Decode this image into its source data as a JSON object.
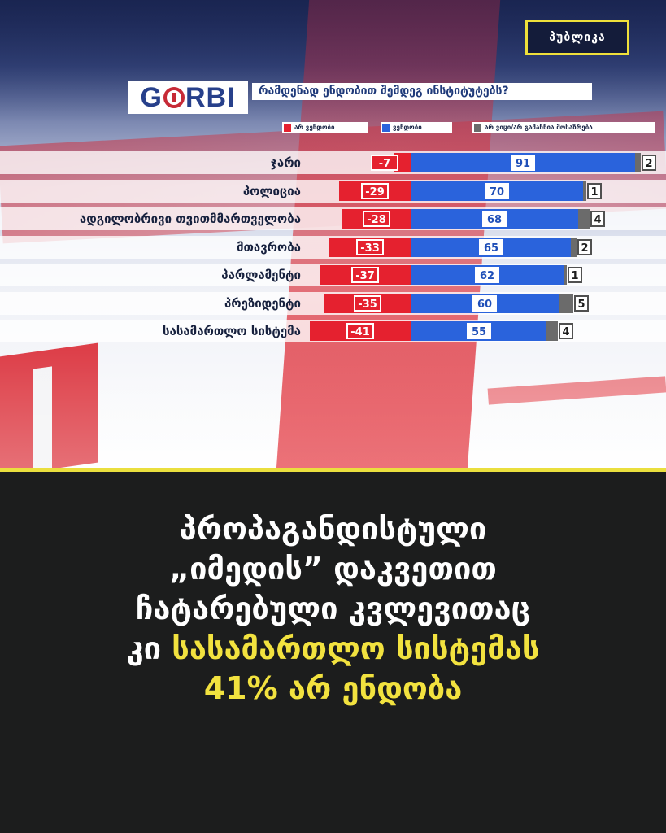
{
  "brand": "პუბლიკა",
  "logo": {
    "prefix": "G",
    "suffix": "RBI"
  },
  "question": "რამდენად ენდობით შემდეგ ინსტიტუტებს?",
  "colors": {
    "negative": "#e5212f",
    "positive": "#2a63dc",
    "neutral": "#6b6b6b",
    "highlight": "#f2e23f"
  },
  "chart_data": {
    "type": "bar",
    "title": "რამდენად ენდობით შემდეგ ინსტიტუტებს?",
    "categories": [
      "ჯარი",
      "პოლიცია",
      "ადგილობრივი თვითმმართველობა",
      "მთავრობა",
      "პარლამენტი",
      "პრეზიდენტი",
      "სასამართლო სისტემა"
    ],
    "series": [
      {
        "name": "არ ვენდობი",
        "values": [
          -7,
          -29,
          -28,
          -33,
          -37,
          -35,
          -41
        ],
        "color": "#e5212f"
      },
      {
        "name": "ვენდობი",
        "values": [
          91,
          70,
          68,
          65,
          62,
          60,
          55
        ],
        "color": "#2a63dc"
      },
      {
        "name": "არ ვიცი/არ გამაჩნია მოსაზრება",
        "values": [
          2,
          1,
          4,
          2,
          1,
          5,
          4
        ],
        "color": "#6b6b6b"
      }
    ],
    "legend": "top"
  },
  "caption": {
    "line1": "პროპაგანდისტული",
    "line2": "„იმედის” დაკვეთით",
    "line3": "ჩატარებული კვლევითაც",
    "line4_plain": "კი ",
    "line4_highlight": "სასამართლო სისტემას",
    "line5": "41% არ ენდობა"
  }
}
